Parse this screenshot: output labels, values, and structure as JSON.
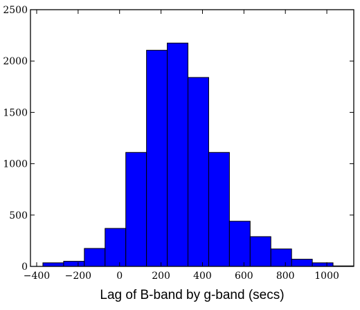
{
  "chart_data": {
    "type": "bar",
    "title": "",
    "xlabel": "Lag of B-band by g-band (secs)",
    "ylabel": "",
    "bin_width": 100,
    "bins": [
      {
        "x0": -370,
        "x1": -270,
        "count": 35
      },
      {
        "x0": -270,
        "x1": -170,
        "count": 50
      },
      {
        "x0": -170,
        "x1": -70,
        "count": 175
      },
      {
        "x0": -70,
        "x1": 30,
        "count": 370
      },
      {
        "x0": 30,
        "x1": 130,
        "count": 1110
      },
      {
        "x0": 130,
        "x1": 230,
        "count": 2105
      },
      {
        "x0": 230,
        "x1": 330,
        "count": 2175
      },
      {
        "x0": 330,
        "x1": 430,
        "count": 1840
      },
      {
        "x0": 430,
        "x1": 530,
        "count": 1110
      },
      {
        "x0": 530,
        "x1": 630,
        "count": 440
      },
      {
        "x0": 630,
        "x1": 730,
        "count": 290
      },
      {
        "x0": 730,
        "x1": 830,
        "count": 170
      },
      {
        "x0": 830,
        "x1": 930,
        "count": 70
      },
      {
        "x0": 930,
        "x1": 1030,
        "count": 35
      },
      {
        "x0": 1030,
        "x1": 1130,
        "count": 5
      }
    ],
    "xlim": [
      -430,
      1130
    ],
    "ylim": [
      0,
      2500
    ],
    "xticks": [
      {
        "value": -400,
        "label": "−400"
      },
      {
        "value": -200,
        "label": "−200"
      },
      {
        "value": 0,
        "label": "0"
      },
      {
        "value": 200,
        "label": "200"
      },
      {
        "value": 400,
        "label": "400"
      },
      {
        "value": 600,
        "label": "600"
      },
      {
        "value": 800,
        "label": "800"
      },
      {
        "value": 1000,
        "label": "1000"
      }
    ],
    "yticks": [
      {
        "value": 0,
        "label": "0"
      },
      {
        "value": 500,
        "label": "500"
      },
      {
        "value": 1000,
        "label": "1000"
      },
      {
        "value": 1500,
        "label": "1500"
      },
      {
        "value": 2000,
        "label": "2000"
      },
      {
        "value": 2500,
        "label": "2500"
      }
    ],
    "colors": {
      "bar_fill": "#0000ff",
      "bar_edge": "#000000",
      "axes": "#000000"
    },
    "grid": false,
    "legend": "none"
  }
}
